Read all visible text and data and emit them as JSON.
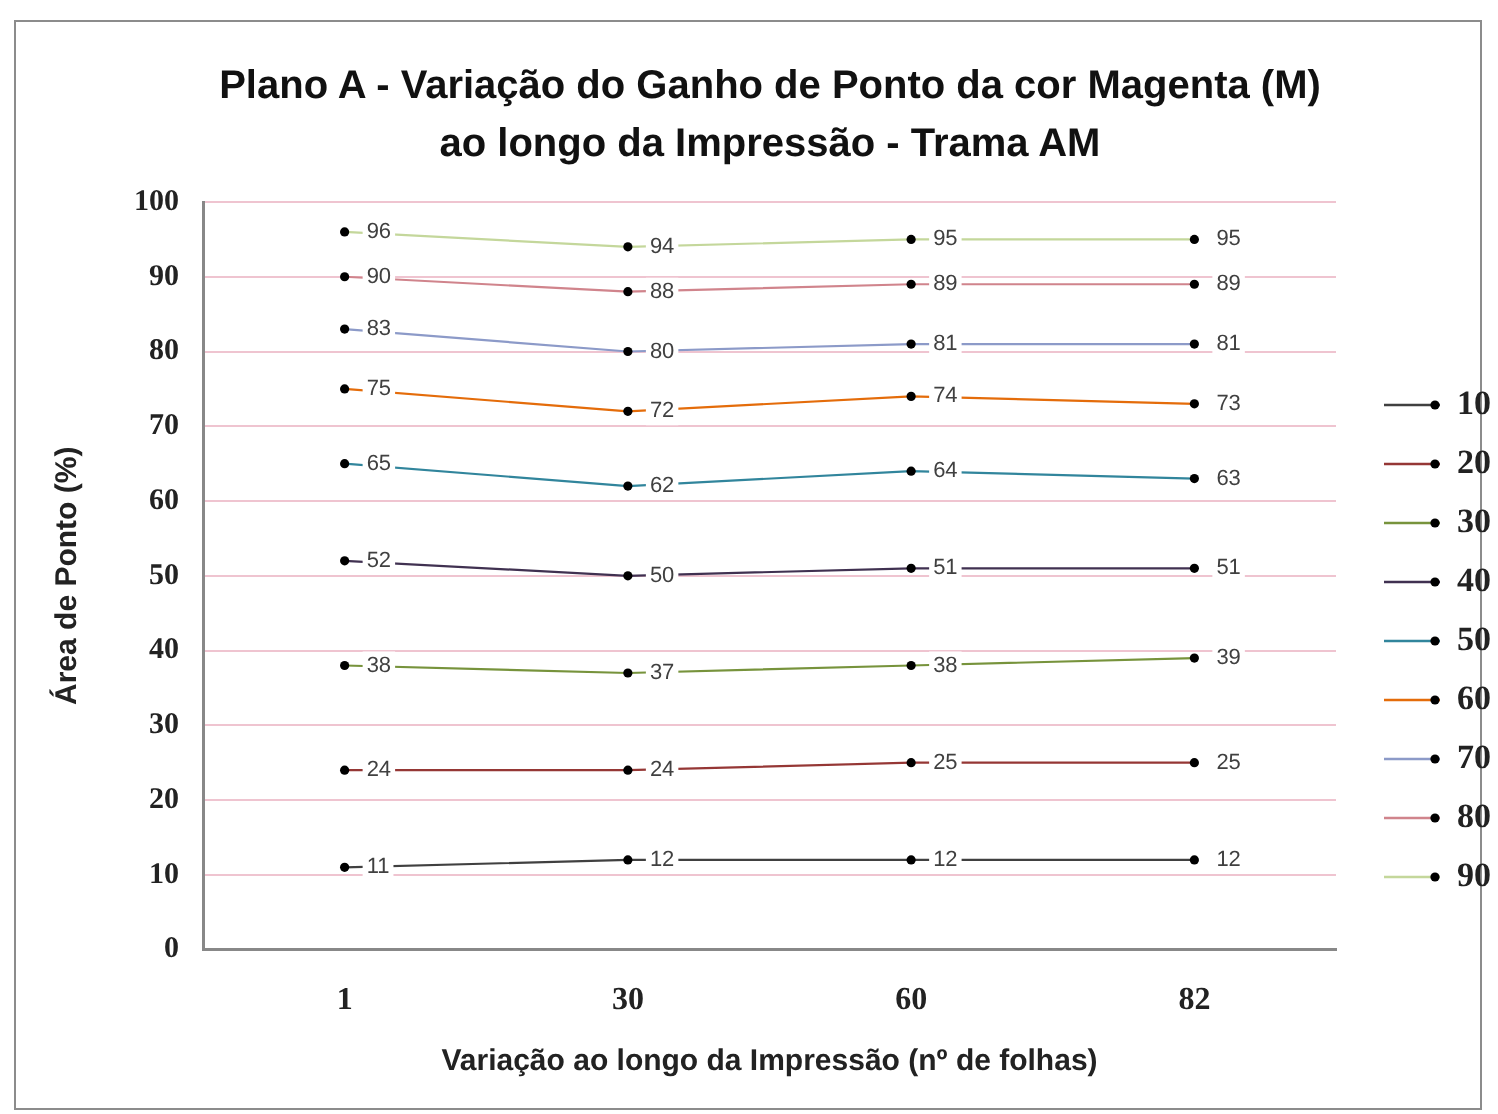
{
  "chart_data": {
    "type": "line",
    "title": "Plano A - Variação do Ganho de Ponto da cor Magenta (M) ao longo da Impressão - Trama AM",
    "xlabel": "Variação ao longo da Impressão (nº de folhas)",
    "ylabel": "Área de Ponto (%)",
    "categories": [
      "1",
      "30",
      "60",
      "82"
    ],
    "series": [
      {
        "name": "10",
        "color": "#404040",
        "values": [
          11,
          12,
          12,
          12
        ]
      },
      {
        "name": "20",
        "color": "#953735",
        "values": [
          24,
          24,
          25,
          25
        ]
      },
      {
        "name": "30",
        "color": "#77933c",
        "values": [
          38,
          37,
          38,
          39
        ]
      },
      {
        "name": "40",
        "color": "#403151",
        "values": [
          52,
          50,
          51,
          51
        ]
      },
      {
        "name": "50",
        "color": "#31859c",
        "values": [
          65,
          62,
          64,
          63
        ]
      },
      {
        "name": "60",
        "color": "#e46c0a",
        "values": [
          75,
          72,
          74,
          73
        ]
      },
      {
        "name": "70",
        "color": "#8c9ac8",
        "values": [
          83,
          80,
          81,
          81
        ]
      },
      {
        "name": "80",
        "color": "#d0848c",
        "values": [
          90,
          88,
          89,
          89
        ]
      },
      {
        "name": "90",
        "color": "#c4d79b",
        "values": [
          96,
          94,
          95,
          95
        ]
      }
    ],
    "ylim": [
      0,
      100
    ],
    "yticks": [
      0,
      10,
      20,
      30,
      40,
      50,
      60,
      70,
      80,
      90,
      100
    ],
    "grid": "y",
    "legend": "right",
    "marker": "circle",
    "line_style": "solid",
    "data_labels": true
  }
}
